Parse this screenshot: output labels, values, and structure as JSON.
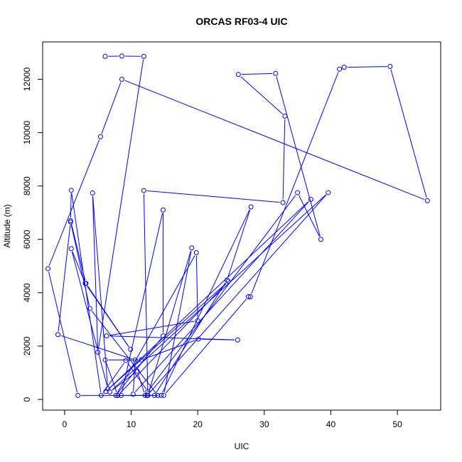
{
  "chart_data": {
    "type": "line",
    "title": "ORCAS RF03-4 UIC",
    "xlabel": "UIC",
    "ylabel": "Altitude (m)",
    "xlim": [
      -3.3,
      56.5
    ],
    "ylim": [
      -400,
      13400
    ],
    "xticks": [
      0,
      10,
      20,
      30,
      40,
      50
    ],
    "yticks": [
      0,
      2000,
      4000,
      6000,
      8000,
      10000,
      12000
    ],
    "grid": false,
    "legend": "none",
    "line_color": "#0000ff",
    "marker": "open-circle",
    "points": [
      [
        6.1,
        12860
      ],
      [
        8.6,
        12870
      ],
      [
        11.9,
        12860
      ],
      [
        5.0,
        1770
      ],
      [
        4.2,
        7740
      ],
      [
        6.5,
        400
      ],
      [
        1.0,
        5650
      ],
      [
        3.1,
        4350
      ],
      [
        9.9,
        1880
      ],
      [
        3.2,
        4350
      ],
      [
        0.9,
        6700
      ],
      [
        1.0,
        7840
      ],
      [
        5.5,
        150
      ],
      [
        9.2,
        1460
      ],
      [
        12.5,
        300
      ],
      [
        35.0,
        7750
      ],
      [
        38.5,
        6000
      ],
      [
        31.7,
        12220
      ],
      [
        26.1,
        12180
      ],
      [
        33.1,
        10620
      ],
      [
        32.8,
        7380
      ],
      [
        11.9,
        7830
      ],
      [
        12.5,
        150
      ],
      [
        19.1,
        5680
      ],
      [
        14.9,
        150
      ],
      [
        27.6,
        3850
      ],
      [
        27.9,
        3850
      ],
      [
        41.3,
        12380
      ],
      [
        42.0,
        12450
      ],
      [
        48.9,
        12480
      ],
      [
        54.5,
        7450
      ],
      [
        8.6,
        12000
      ],
      [
        5.4,
        9850
      ],
      [
        -2.5,
        4900
      ],
      [
        2.0,
        150
      ],
      [
        13.5,
        150
      ],
      [
        24.4,
        4470
      ],
      [
        28.0,
        7220
      ],
      [
        14.5,
        150
      ],
      [
        8.5,
        150
      ],
      [
        14.8,
        7100
      ],
      [
        14.8,
        2380
      ],
      [
        7.7,
        150
      ],
      [
        19.8,
        5500
      ],
      [
        20.0,
        2950
      ],
      [
        6.3,
        2380
      ],
      [
        26.0,
        2230
      ],
      [
        20.1,
        2260
      ],
      [
        11.5,
        1480
      ],
      [
        6.1,
        1480
      ],
      [
        8.0,
        150
      ],
      [
        24.6,
        4430
      ],
      [
        6.2,
        300
      ],
      [
        37.0,
        7500
      ],
      [
        10.3,
        200
      ],
      [
        10.6,
        1480
      ],
      [
        -1.0,
        2430
      ],
      [
        0.9,
        6650
      ],
      [
        3.8,
        3410
      ],
      [
        14.0,
        150
      ],
      [
        12.1,
        150
      ],
      [
        10.9,
        1060
      ],
      [
        6.8,
        280
      ],
      [
        39.6,
        7750
      ],
      [
        12.4,
        150
      ]
    ]
  }
}
